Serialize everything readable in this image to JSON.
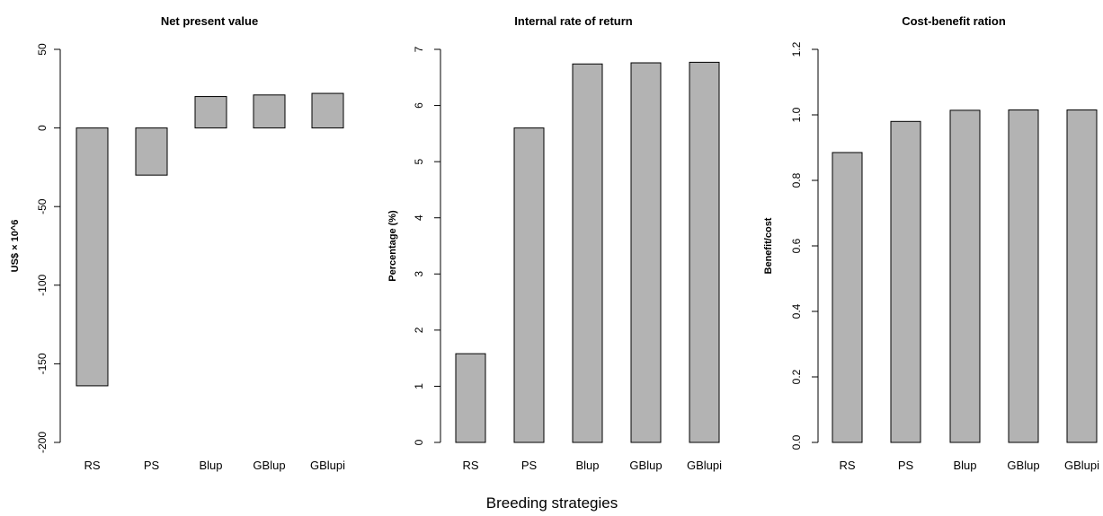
{
  "figure": {
    "common_xlabel": "Breeding strategies"
  },
  "chart_data": [
    {
      "type": "bar",
      "title": "Net present value",
      "ylabel": "US$ × 10^6",
      "xlabel": "",
      "categories": [
        "RS",
        "PS",
        "Blup",
        "GBlup",
        "GBlupi"
      ],
      "values": [
        -164,
        -30,
        20,
        21,
        22
      ],
      "ylim": [
        -200,
        50
      ],
      "yticks": [
        -200,
        -150,
        -100,
        -50,
        0,
        50
      ],
      "bar_color": "#b3b3b3",
      "grid": false,
      "legend": "none"
    },
    {
      "type": "bar",
      "title": "Internal rate of return",
      "ylabel": "Percentage (%)",
      "xlabel": "",
      "categories": [
        "RS",
        "PS",
        "Blup",
        "GBlup",
        "GBlupi"
      ],
      "values": [
        1.58,
        5.6,
        6.74,
        6.76,
        6.77
      ],
      "ylim": [
        0,
        7
      ],
      "yticks": [
        0,
        1,
        2,
        3,
        4,
        5,
        6,
        7
      ],
      "bar_color": "#b3b3b3",
      "grid": false,
      "legend": "none"
    },
    {
      "type": "bar",
      "title": "Cost-benefit ration",
      "ylabel": "Benefit/cost",
      "xlabel": "",
      "categories": [
        "RS",
        "PS",
        "Blup",
        "GBlup",
        "GBlupi"
      ],
      "values": [
        0.885,
        0.98,
        1.014,
        1.015,
        1.015
      ],
      "ylim": [
        0,
        1.2
      ],
      "yticks": [
        0.0,
        0.2,
        0.4,
        0.6,
        0.8,
        1.0,
        1.2
      ],
      "ytick_labels": [
        "0.0",
        "0.2",
        "0.4",
        "0.6",
        "0.8",
        "1.0",
        "1.2"
      ],
      "bar_color": "#b3b3b3",
      "grid": false,
      "legend": "none"
    }
  ]
}
